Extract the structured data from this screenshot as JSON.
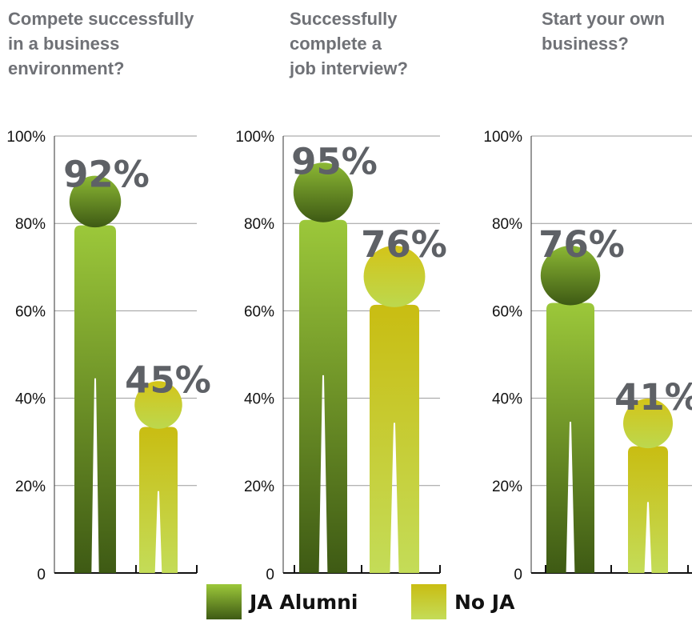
{
  "chart_data": [
    {
      "type": "bar",
      "title": "Compete successfully\nin a business\nenvironment?",
      "categories": [
        "JA Alumni",
        "No JA"
      ],
      "series": [
        {
          "values": [
            92,
            45
          ]
        }
      ],
      "data_labels": [
        "92%",
        "45%"
      ],
      "y_ticks": [
        "0",
        "20%",
        "40%",
        "60%",
        "80%",
        "100%"
      ],
      "ylim": [
        0,
        100
      ],
      "grid": true
    },
    {
      "type": "bar",
      "title": "Successfully\ncomplete a\njob interview?",
      "categories": [
        "JA Alumni",
        "No JA"
      ],
      "series": [
        {
          "values": [
            95,
            76
          ]
        }
      ],
      "data_labels": [
        "95%",
        "76%"
      ],
      "y_ticks": [
        "0",
        "20%",
        "40%",
        "60%",
        "80%",
        "100%"
      ],
      "ylim": [
        0,
        100
      ],
      "grid": true
    },
    {
      "type": "bar",
      "title": "Start your own\nbusiness?",
      "categories": [
        "JA Alumni",
        "No JA"
      ],
      "series": [
        {
          "values": [
            76,
            41
          ]
        }
      ],
      "data_labels": [
        "76%",
        "41%"
      ],
      "y_ticks": [
        "0",
        "20%",
        "40%",
        "60%",
        "80%",
        "100%"
      ],
      "ylim": [
        0,
        100
      ],
      "grid": true
    }
  ],
  "legend": {
    "placement": "bottom",
    "items": [
      {
        "label": "JA Alumni",
        "color": "#4f6e1c"
      },
      {
        "label": "No JA",
        "color": "#c8c21a"
      }
    ]
  },
  "colors": {
    "ja_alumni_light": "#9cc83a",
    "ja_alumni_dark": "#3e5a14",
    "no_ja_light": "#c4dc58",
    "no_ja_dark": "#c9bd12"
  }
}
